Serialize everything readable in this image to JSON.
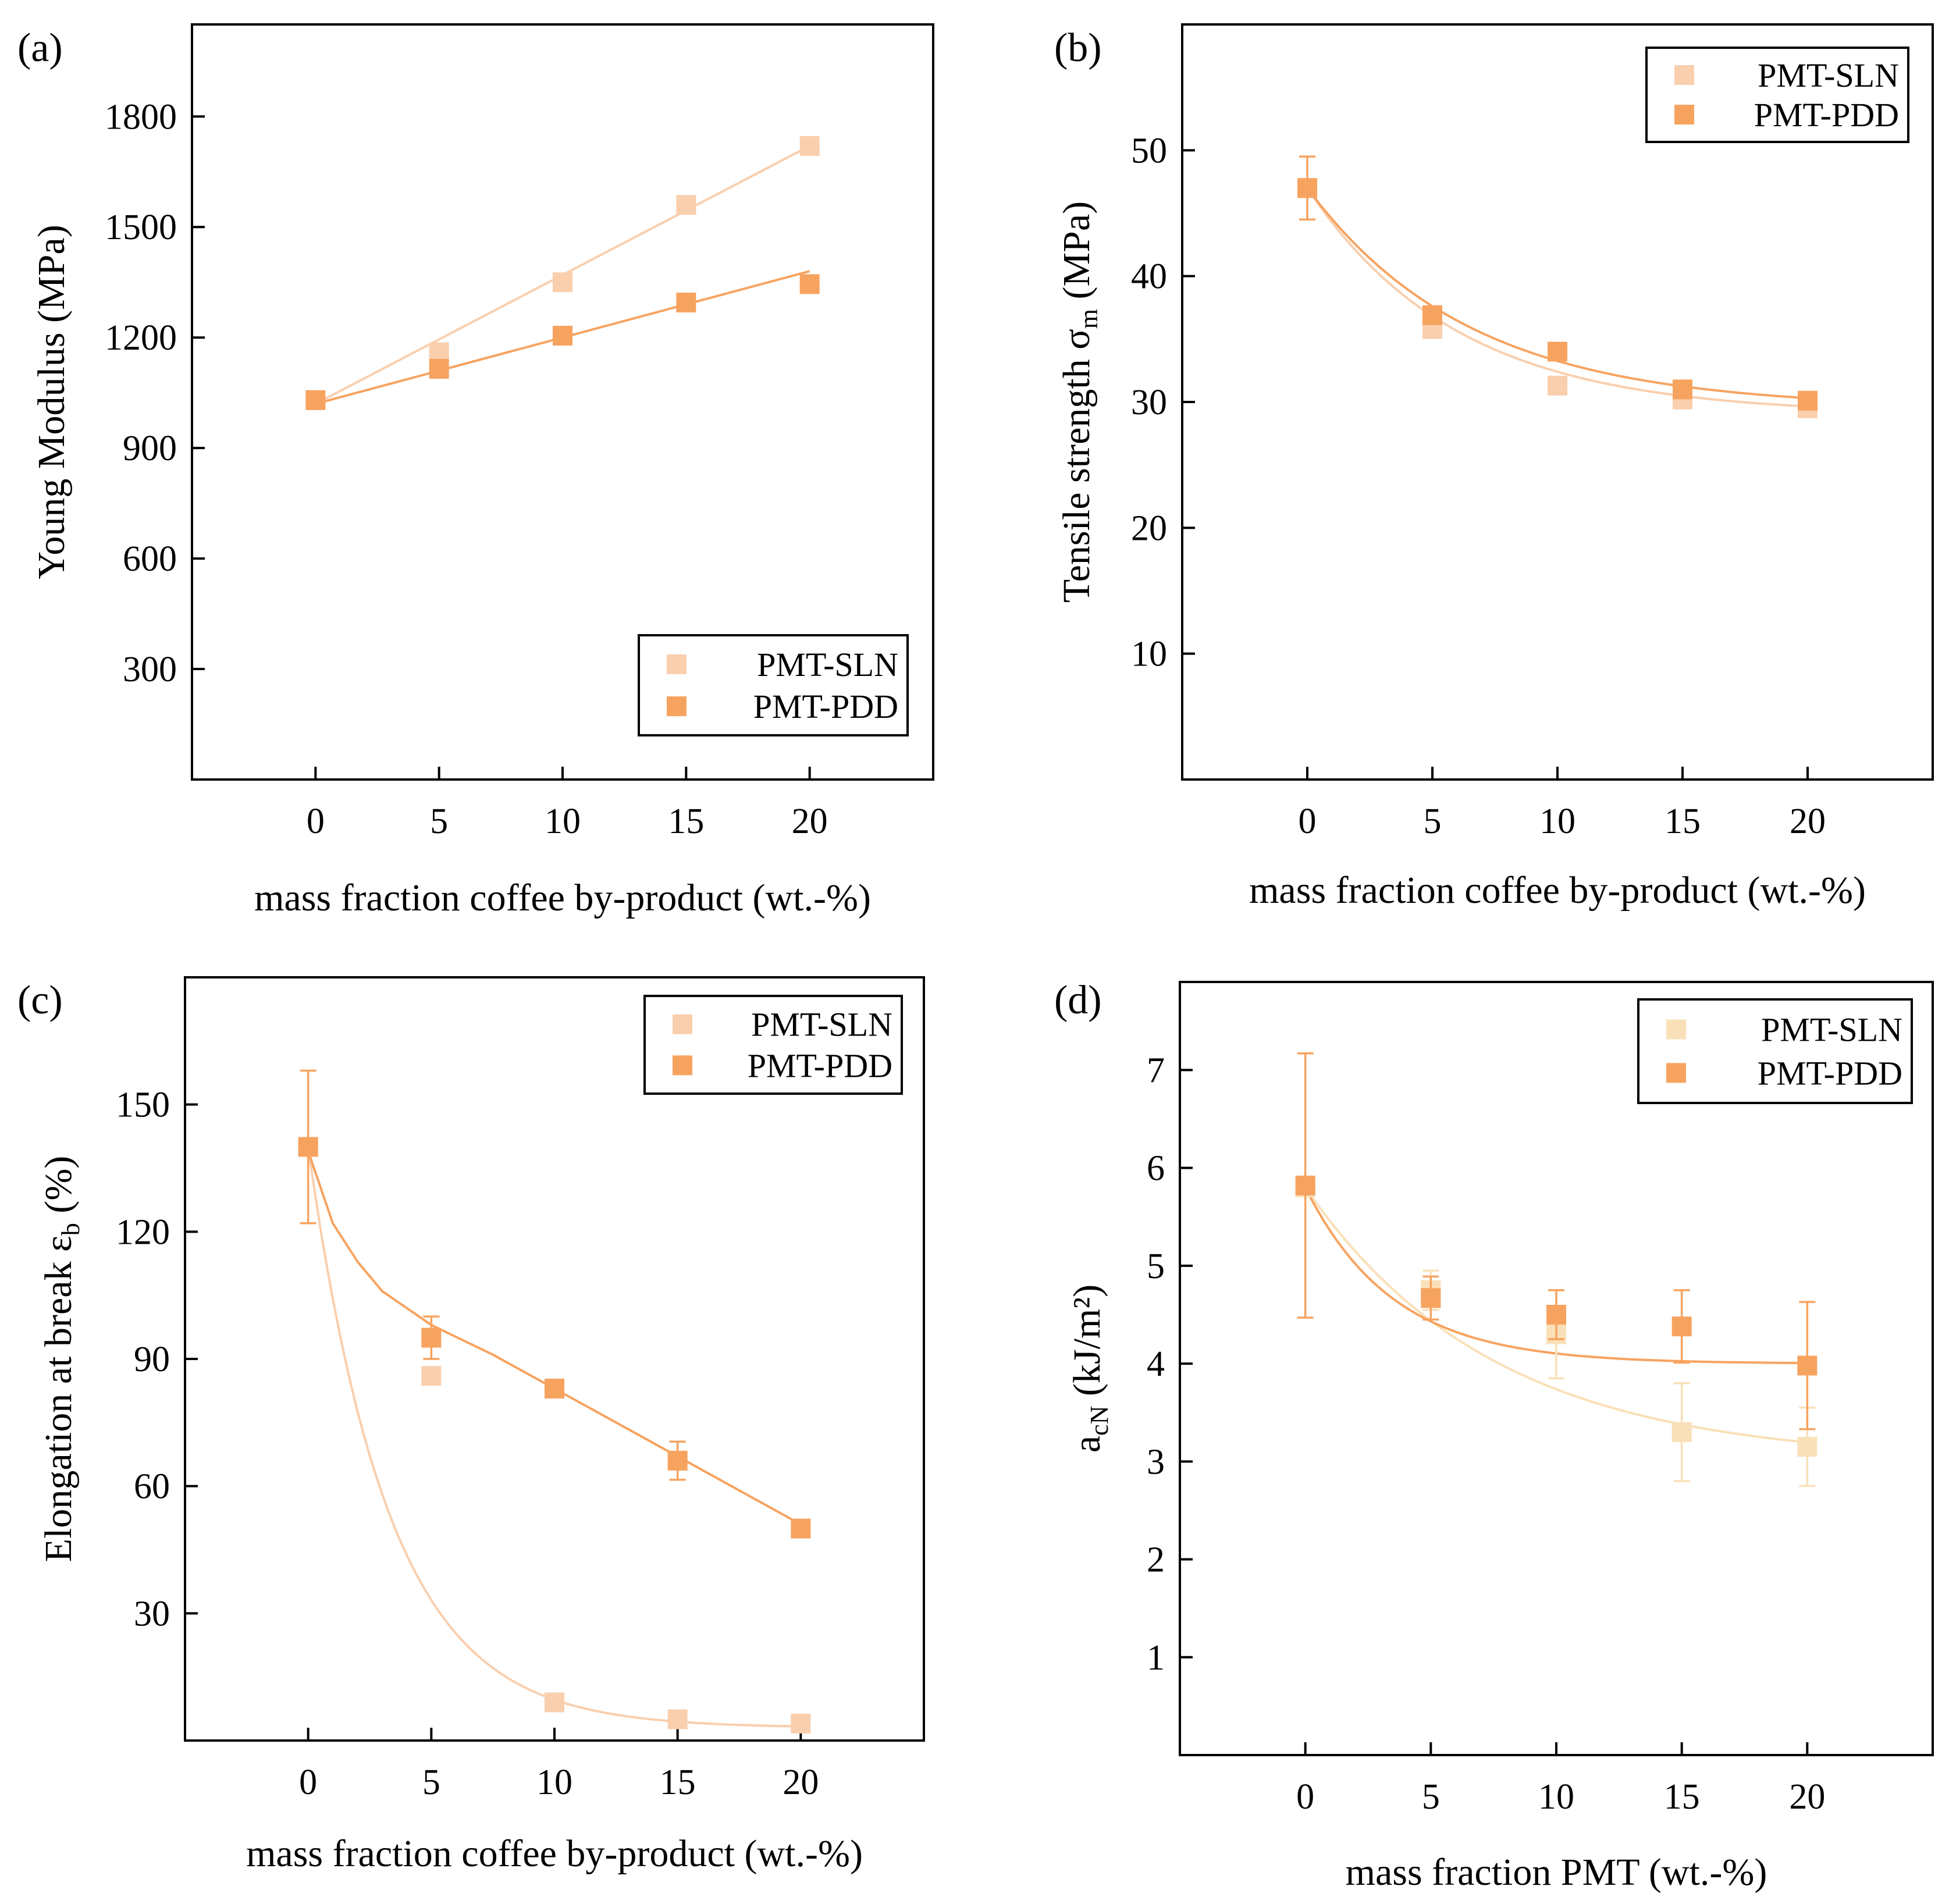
{
  "colors": {
    "sln": "#f9cfae",
    "pdd": "#f7a360",
    "sln_d": "#fae0b8"
  },
  "chart_data": [
    {
      "id": "a",
      "type": "scatter",
      "panel_label": "(a)",
      "xlabel": "mass fraction coffee by-product (wt.-%)",
      "ylabel": "Young Modulus (MPa)",
      "ylabel_sub": "",
      "ylabel_suffix": "",
      "xlim": [
        -5,
        25
      ],
      "ylim": [
        0,
        2050
      ],
      "xticks": [
        0,
        5,
        10,
        15,
        20
      ],
      "yticks": [
        300,
        600,
        900,
        1200,
        1500,
        1800
      ],
      "legend_position": "bottom-right",
      "series": [
        {
          "name": "PMT-SLN",
          "color": "sln",
          "x": [
            0,
            5,
            10,
            15,
            20
          ],
          "y": [
            1030,
            1160,
            1350,
            1560,
            1720
          ],
          "err": [
            0,
            0,
            0,
            0,
            0
          ],
          "fit": {
            "type": "linear_interp",
            "x": [
              0,
              5,
              10,
              15,
              20
            ],
            "y": [
              1020,
              1195,
              1370,
              1545,
              1720
            ]
          }
        },
        {
          "name": "PMT-PDD",
          "color": "pdd",
          "x": [
            0,
            5,
            10,
            15,
            20
          ],
          "y": [
            1030,
            1115,
            1205,
            1295,
            1345
          ],
          "err": [
            0,
            0,
            0,
            0,
            0
          ],
          "fit": {
            "type": "linear_interp",
            "x": [
              0,
              5,
              10,
              15,
              20
            ],
            "y": [
              1020,
              1110,
              1200,
              1290,
              1380
            ]
          }
        }
      ]
    },
    {
      "id": "b",
      "type": "scatter",
      "panel_label": "(b)",
      "xlabel": "mass fraction coffee by-product (wt.-%)",
      "ylabel": "Tensile strength σ",
      "ylabel_sub": "m",
      "ylabel_suffix": " (MPa)",
      "xlim": [
        -5,
        25
      ],
      "ylim": [
        0,
        60
      ],
      "xticks": [
        0,
        5,
        10,
        15,
        20
      ],
      "yticks": [
        10,
        20,
        30,
        40,
        50
      ],
      "legend_position": "top-right",
      "series": [
        {
          "name": "PMT-SLN",
          "color": "sln",
          "x": [
            0,
            5,
            10,
            15,
            20
          ],
          "y": [
            47,
            35.8,
            31.3,
            30.2,
            29.5
          ],
          "err": [
            0,
            0,
            0,
            0,
            0
          ],
          "fit": {
            "type": "exp",
            "a": 29.0,
            "b": 18.0,
            "c": 6.0
          }
        },
        {
          "name": "PMT-PDD",
          "color": "pdd",
          "x": [
            0,
            5,
            10,
            15,
            20
          ],
          "y": [
            47,
            36.9,
            34,
            31,
            30.1
          ],
          "err": [
            2.5,
            0,
            0,
            0,
            0
          ],
          "fit": {
            "type": "exp",
            "a": 29.5,
            "b": 17.5,
            "c": 6.5
          }
        }
      ]
    },
    {
      "id": "c",
      "type": "scatter",
      "panel_label": "(c)",
      "xlabel": "mass fraction coffee by-product (wt.-%)",
      "ylabel": "Elongation at break ε",
      "ylabel_sub": "b",
      "ylabel_suffix": " (%)",
      "xlim": [
        -5,
        25
      ],
      "ylim": [
        0,
        180
      ],
      "xticks": [
        0,
        5,
        10,
        15,
        20
      ],
      "yticks": [
        30,
        60,
        90,
        120,
        150
      ],
      "legend_position": "top-right",
      "series": [
        {
          "name": "PMT-SLN",
          "color": "sln",
          "x": [
            0,
            5,
            10,
            15,
            20
          ],
          "y": [
            140,
            86,
            9,
            5,
            4
          ],
          "err": [
            0,
            0,
            0,
            0,
            0
          ],
          "fit": {
            "type": "exp",
            "a": 3.0,
            "b": 137.0,
            "c": 3.3
          }
        },
        {
          "name": "PMT-PDD",
          "color": "pdd",
          "x": [
            0,
            5,
            10,
            15,
            20
          ],
          "y": [
            140,
            95,
            83,
            66,
            50
          ],
          "err": [
            18,
            5,
            0,
            4.5,
            0
          ],
          "fit": {
            "type": "poly_pts",
            "x": [
              0,
              1,
              2,
              3,
              4,
              5,
              7.5,
              10,
              12.5,
              15,
              17.5,
              20
            ],
            "y": [
              139,
              122,
              113,
              106,
              102,
              98,
              91,
              83,
              75,
              67,
              59,
              51
            ]
          }
        }
      ]
    },
    {
      "id": "d",
      "type": "scatter",
      "panel_label": "(d)",
      "xlabel": "mass fraction PMT (wt.-%)",
      "ylabel": "a",
      "ylabel_sub": "cN",
      "ylabel_suffix": " (kJ/m²)",
      "xlim": [
        -5,
        25
      ],
      "ylim": [
        0,
        7.9
      ],
      "xticks": [
        0,
        5,
        10,
        15,
        20
      ],
      "yticks": [
        1,
        2,
        3,
        4,
        5,
        6,
        7
      ],
      "legend_position": "top-right",
      "series": [
        {
          "name": "PMT-SLN",
          "color": "sln_d",
          "x": [
            0,
            5,
            10,
            15,
            20
          ],
          "y": [
            5.8,
            4.75,
            4.3,
            3.3,
            3.15
          ],
          "err": [
            0,
            0.2,
            0.45,
            0.5,
            0.4
          ],
          "fit": {
            "type": "exp",
            "a": 3.0,
            "b": 2.8,
            "c": 7.5
          }
        },
        {
          "name": "PMT-PDD",
          "color": "pdd",
          "x": [
            0,
            5,
            10,
            15,
            20
          ],
          "y": [
            5.82,
            4.67,
            4.5,
            4.38,
            3.98
          ],
          "err": [
            1.35,
            0.22,
            0.25,
            0.37,
            0.65
          ],
          "fit": {
            "type": "exp",
            "a": 4.0,
            "b": 1.8,
            "c": 3.5
          }
        }
      ]
    }
  ]
}
